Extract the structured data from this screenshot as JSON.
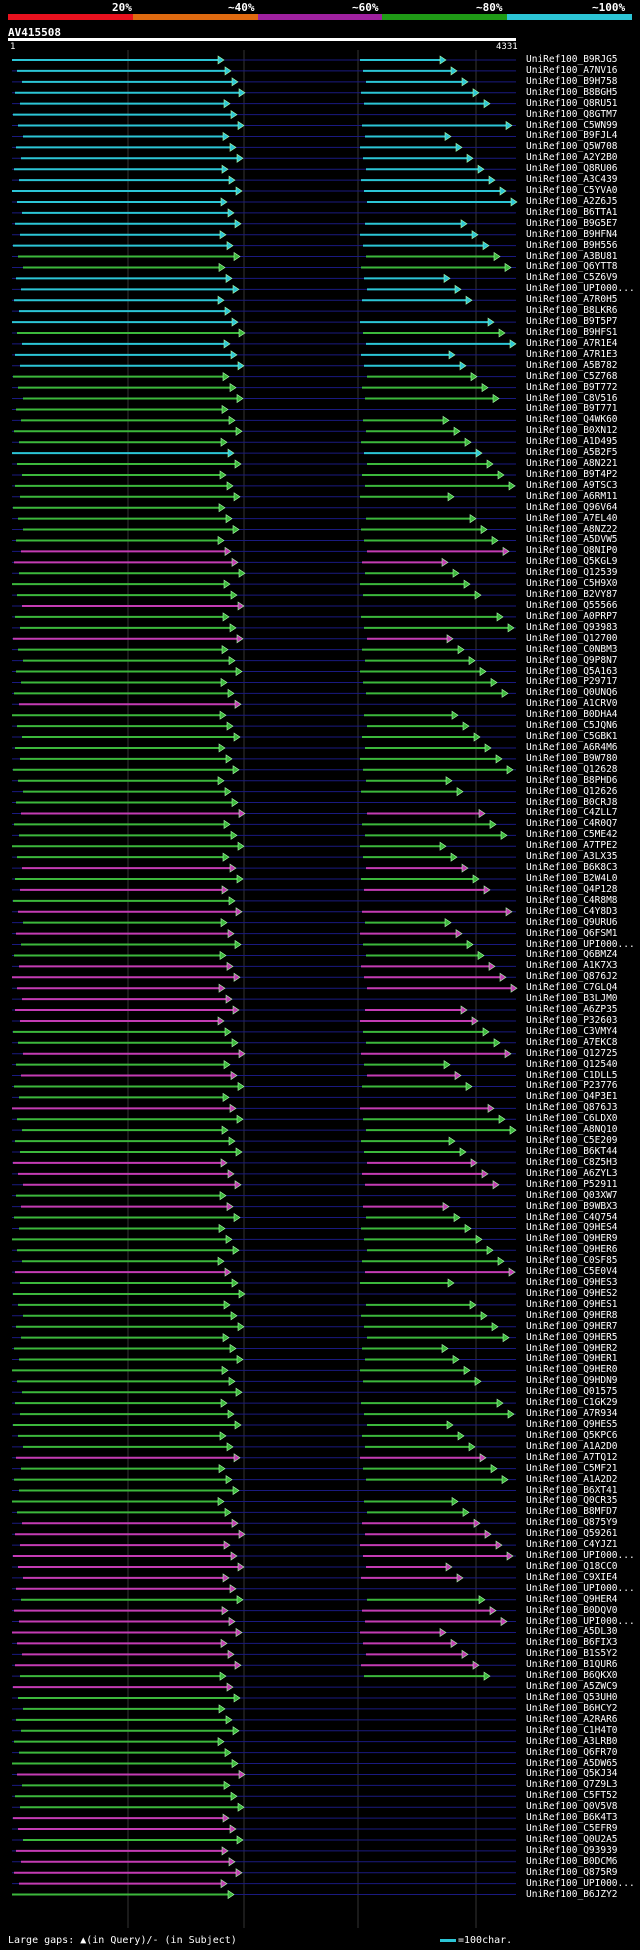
{
  "percent_labels": [
    "20%",
    "~40%",
    "~60%",
    "~80%",
    "~100%"
  ],
  "scale_colors": [
    "#e8111e",
    "#e06a10",
    "#a021a0",
    "#1f9a16",
    "#2cc5d6"
  ],
  "query": {
    "name": "AV415508",
    "start": "1",
    "end": "4331"
  },
  "line_colors": {
    "cyan": "#2cc5d6",
    "green": "#3cb83c",
    "magenta": "#c43cb4"
  },
  "footer": {
    "gaps": "Large gaps: ▲(in Query)/- (in Subject)",
    "scale": "=100char."
  },
  "hits": [
    {
      "id": "UniRef100_B9RJG5",
      "c": "cyan"
    },
    {
      "id": "UniRef100_A7NV16",
      "c": "cyan"
    },
    {
      "id": "UniRef100_B9H758",
      "c": "cyan"
    },
    {
      "id": "UniRef100_B8BGH5",
      "c": "cyan"
    },
    {
      "id": "UniRef100_Q8RU51",
      "c": "cyan"
    },
    {
      "id": "UniRef100_Q8GTM7",
      "c": "cyan"
    },
    {
      "id": "UniRef100_C5WN99",
      "c": "cyan"
    },
    {
      "id": "UniRef100_B9FJL4",
      "c": "cyan"
    },
    {
      "id": "UniRef100_Q5W708",
      "c": "cyan"
    },
    {
      "id": "UniRef100_A2Y2B0",
      "c": "cyan"
    },
    {
      "id": "UniRef100_Q8RU06",
      "c": "cyan"
    },
    {
      "id": "UniRef100_A3C439",
      "c": "cyan"
    },
    {
      "id": "UniRef100_C5YVA0",
      "c": "cyan"
    },
    {
      "id": "UniRef100_A2Z6J5",
      "c": "cyan"
    },
    {
      "id": "UniRef100_B6TTA1",
      "c": "cyan"
    },
    {
      "id": "UniRef100_B9G5E7",
      "c": "cyan"
    },
    {
      "id": "UniRef100_B9HFN4",
      "c": "cyan"
    },
    {
      "id": "UniRef100_B9H556",
      "c": "cyan"
    },
    {
      "id": "UniRef100_A3BU81",
      "c": "green"
    },
    {
      "id": "UniRef100_Q6YTT8",
      "c": "green"
    },
    {
      "id": "UniRef100_C5Z6V9",
      "c": "cyan"
    },
    {
      "id": "UniRef100_UPI000...",
      "c": "cyan"
    },
    {
      "id": "UniRef100_A7R0H5",
      "c": "cyan"
    },
    {
      "id": "UniRef100_B8LKR6",
      "c": "cyan"
    },
    {
      "id": "UniRef100_B9T5P7",
      "c": "cyan"
    },
    {
      "id": "UniRef100_B9HFS1",
      "c": "green"
    },
    {
      "id": "UniRef100_A7R1E4",
      "c": "cyan"
    },
    {
      "id": "UniRef100_A7R1E3",
      "c": "cyan"
    },
    {
      "id": "UniRef100_A5B782",
      "c": "cyan"
    },
    {
      "id": "UniRef100_C5Z768",
      "c": "green"
    },
    {
      "id": "UniRef100_B9T772",
      "c": "green"
    },
    {
      "id": "UniRef100_C8V516",
      "c": "green"
    },
    {
      "id": "UniRef100_B9T771",
      "c": "green"
    },
    {
      "id": "UniRef100_Q4WK60",
      "c": "green"
    },
    {
      "id": "UniRef100_B0XN12",
      "c": "green"
    },
    {
      "id": "UniRef100_A1D495",
      "c": "green"
    },
    {
      "id": "UniRef100_A5B2F5",
      "c": "cyan"
    },
    {
      "id": "UniRef100_A8N221",
      "c": "green"
    },
    {
      "id": "UniRef100_B9T4P2",
      "c": "green"
    },
    {
      "id": "UniRef100_A9TSC3",
      "c": "green"
    },
    {
      "id": "UniRef100_A6RM11",
      "c": "green"
    },
    {
      "id": "UniRef100_Q96V64",
      "c": "green"
    },
    {
      "id": "UniRef100_A7EL40",
      "c": "green"
    },
    {
      "id": "UniRef100_A8NZ22",
      "c": "green"
    },
    {
      "id": "UniRef100_A5DVW5",
      "c": "green"
    },
    {
      "id": "UniRef100_Q8NIP0",
      "c": "magenta"
    },
    {
      "id": "UniRef100_Q5KGL9",
      "c": "magenta"
    },
    {
      "id": "UniRef100_Q12539",
      "c": "green"
    },
    {
      "id": "UniRef100_C5H9X0",
      "c": "green"
    },
    {
      "id": "UniRef100_B2VY87",
      "c": "green"
    },
    {
      "id": "UniRef100_Q55566",
      "c": "magenta"
    },
    {
      "id": "UniRef100_A0PRP7",
      "c": "green"
    },
    {
      "id": "UniRef100_Q93983",
      "c": "green"
    },
    {
      "id": "UniRef100_Q12700",
      "c": "magenta"
    },
    {
      "id": "UniRef100_C0NBM3",
      "c": "green"
    },
    {
      "id": "UniRef100_Q9P8N7",
      "c": "green"
    },
    {
      "id": "UniRef100_Q5A163",
      "c": "green"
    },
    {
      "id": "UniRef100_P29717",
      "c": "green"
    },
    {
      "id": "UniRef100_Q0UNQ6",
      "c": "green"
    },
    {
      "id": "UniRef100_A1CRV0",
      "c": "magenta"
    },
    {
      "id": "UniRef100_B0DHA4",
      "c": "green"
    },
    {
      "id": "UniRef100_C5JQN6",
      "c": "green"
    },
    {
      "id": "UniRef100_C5GBK1",
      "c": "green"
    },
    {
      "id": "UniRef100_A6R4M6",
      "c": "green"
    },
    {
      "id": "UniRef100_B9W780",
      "c": "green"
    },
    {
      "id": "UniRef100_Q12628",
      "c": "green"
    },
    {
      "id": "UniRef100_B8PHD6",
      "c": "green"
    },
    {
      "id": "UniRef100_Q12626",
      "c": "green"
    },
    {
      "id": "UniRef100_B0CRJ8",
      "c": "green"
    },
    {
      "id": "UniRef100_C4ZLL7",
      "c": "magenta"
    },
    {
      "id": "UniRef100_C4R0Q7",
      "c": "green"
    },
    {
      "id": "UniRef100_C5ME42",
      "c": "green"
    },
    {
      "id": "UniRef100_A7TPE2",
      "c": "green"
    },
    {
      "id": "UniRef100_A3LX35",
      "c": "green"
    },
    {
      "id": "UniRef100_B6K8C3",
      "c": "magenta"
    },
    {
      "id": "UniRef100_B2W4L0",
      "c": "green"
    },
    {
      "id": "UniRef100_Q4P128",
      "c": "magenta"
    },
    {
      "id": "UniRef100_C4R8M8",
      "c": "green"
    },
    {
      "id": "UniRef100_C4Y8D3",
      "c": "magenta"
    },
    {
      "id": "UniRef100_Q9URU6",
      "c": "green"
    },
    {
      "id": "UniRef100_Q6FSM1",
      "c": "magenta"
    },
    {
      "id": "UniRef100_UPI000...",
      "c": "green"
    },
    {
      "id": "UniRef100_Q6BMZ4",
      "c": "green"
    },
    {
      "id": "UniRef100_A1K7X3",
      "c": "magenta"
    },
    {
      "id": "UniRef100_Q876J2",
      "c": "magenta"
    },
    {
      "id": "UniRef100_C7GLQ4",
      "c": "magenta"
    },
    {
      "id": "UniRef100_B3LJM0",
      "c": "magenta"
    },
    {
      "id": "UniRef100_A6ZP35",
      "c": "magenta"
    },
    {
      "id": "UniRef100_P32603",
      "c": "magenta"
    },
    {
      "id": "UniRef100_C3VMY4",
      "c": "green"
    },
    {
      "id": "UniRef100_A7EKC8",
      "c": "green"
    },
    {
      "id": "UniRef100_Q12725",
      "c": "magenta"
    },
    {
      "id": "UniRef100_Q12540",
      "c": "green"
    },
    {
      "id": "UniRef100_C1DLL5",
      "c": "magenta"
    },
    {
      "id": "UniRef100_P23776",
      "c": "green"
    },
    {
      "id": "UniRef100_Q4P3E1",
      "c": "green"
    },
    {
      "id": "UniRef100_Q876J3",
      "c": "magenta"
    },
    {
      "id": "UniRef100_C6LDX0",
      "c": "green"
    },
    {
      "id": "UniRef100_A8NQ10",
      "c": "green"
    },
    {
      "id": "UniRef100_C5E209",
      "c": "green"
    },
    {
      "id": "UniRef100_B6KT44",
      "c": "green"
    },
    {
      "id": "UniRef100_C8Z5H3",
      "c": "magenta"
    },
    {
      "id": "UniRef100_A6ZYL3",
      "c": "magenta"
    },
    {
      "id": "UniRef100_P52911",
      "c": "magenta"
    },
    {
      "id": "UniRef100_Q03XW7",
      "c": "green"
    },
    {
      "id": "UniRef100_B9WBX3",
      "c": "magenta"
    },
    {
      "id": "UniRef100_C4Q754",
      "c": "green"
    },
    {
      "id": "UniRef100_Q9HES4",
      "c": "green"
    },
    {
      "id": "UniRef100_Q9HER9",
      "c": "green"
    },
    {
      "id": "UniRef100_Q9HER6",
      "c": "green"
    },
    {
      "id": "UniRef100_C0SF85",
      "c": "green"
    },
    {
      "id": "UniRef100_C5E0V4",
      "c": "magenta"
    },
    {
      "id": "UniRef100_Q9HES3",
      "c": "green"
    },
    {
      "id": "UniRef100_Q9HES2",
      "c": "green"
    },
    {
      "id": "UniRef100_Q9HES1",
      "c": "green"
    },
    {
      "id": "UniRef100_Q9HER8",
      "c": "green"
    },
    {
      "id": "UniRef100_Q9HER7",
      "c": "green"
    },
    {
      "id": "UniRef100_Q9HER5",
      "c": "green"
    },
    {
      "id": "UniRef100_Q9HER2",
      "c": "green"
    },
    {
      "id": "UniRef100_Q9HER1",
      "c": "green"
    },
    {
      "id": "UniRef100_Q9HER0",
      "c": "green"
    },
    {
      "id": "UniRef100_Q9HDN9",
      "c": "green"
    },
    {
      "id": "UniRef100_Q01575",
      "c": "green"
    },
    {
      "id": "UniRef100_C1GK29",
      "c": "green"
    },
    {
      "id": "UniRef100_A7R934",
      "c": "green"
    },
    {
      "id": "UniRef100_Q9HES5",
      "c": "green"
    },
    {
      "id": "UniRef100_Q5KPC6",
      "c": "green"
    },
    {
      "id": "UniRef100_A1A2D0",
      "c": "green"
    },
    {
      "id": "UniRef100_A7TQ12",
      "c": "magenta"
    },
    {
      "id": "UniRef100_C5MF21",
      "c": "green"
    },
    {
      "id": "UniRef100_A1A2D2",
      "c": "green"
    },
    {
      "id": "UniRef100_B6XT41",
      "c": "green"
    },
    {
      "id": "UniRef100_Q0CR35",
      "c": "green"
    },
    {
      "id": "UniRef100_B8MFD7",
      "c": "green"
    },
    {
      "id": "UniRef100_Q875Y9",
      "c": "magenta"
    },
    {
      "id": "UniRef100_Q59261",
      "c": "magenta"
    },
    {
      "id": "UniRef100_C4YJZ1",
      "c": "magenta"
    },
    {
      "id": "UniRef100_UPI000...",
      "c": "magenta"
    },
    {
      "id": "UniRef100_Q18CC0",
      "c": "magenta"
    },
    {
      "id": "UniRef100_C9XIE4",
      "c": "magenta"
    },
    {
      "id": "UniRef100_UPI000...",
      "c": "magenta"
    },
    {
      "id": "UniRef100_Q9HER4",
      "c": "green"
    },
    {
      "id": "UniRef100_B0DQV0",
      "c": "magenta"
    },
    {
      "id": "UniRef100_UPI000...",
      "c": "magenta"
    },
    {
      "id": "UniRef100_A5DL30",
      "c": "magenta"
    },
    {
      "id": "UniRef100_B6FIX3",
      "c": "magenta"
    },
    {
      "id": "UniRef100_B1S5Y2",
      "c": "magenta"
    },
    {
      "id": "UniRef100_B1QUR6",
      "c": "magenta"
    },
    {
      "id": "UniRef100_B6QKX0",
      "c": "green"
    },
    {
      "id": "UniRef100_A5ZWC9",
      "c": "magenta"
    },
    {
      "id": "UniRef100_Q53UH0",
      "c": "green"
    },
    {
      "id": "UniRef100_B6HCY2",
      "c": "green"
    },
    {
      "id": "UniRef100_A2RAR6",
      "c": "green"
    },
    {
      "id": "UniRef100_C1H4T0",
      "c": "green"
    },
    {
      "id": "UniRef100_A3LRB0",
      "c": "green"
    },
    {
      "id": "UniRef100_Q6FR70",
      "c": "green"
    },
    {
      "id": "UniRef100_A5DW65",
      "c": "green"
    },
    {
      "id": "UniRef100_Q5KJ34",
      "c": "magenta"
    },
    {
      "id": "UniRef100_Q7Z9L3",
      "c": "green"
    },
    {
      "id": "UniRef100_C5FT52",
      "c": "green"
    },
    {
      "id": "UniRef100_Q0V5V8",
      "c": "green"
    },
    {
      "id": "UniRef100_B6K4T3",
      "c": "magenta"
    },
    {
      "id": "UniRef100_C5EFR9",
      "c": "magenta"
    },
    {
      "id": "UniRef100_Q0U2A5",
      "c": "green"
    },
    {
      "id": "UniRef100_Q93939",
      "c": "magenta"
    },
    {
      "id": "UniRef100_B0DCM6",
      "c": "magenta"
    },
    {
      "id": "UniRef100_Q875R9",
      "c": "magenta"
    },
    {
      "id": "UniRef100_UPI000...",
      "c": "magenta"
    },
    {
      "id": "UniRef100_B6JZY2",
      "c": "green"
    }
  ]
}
